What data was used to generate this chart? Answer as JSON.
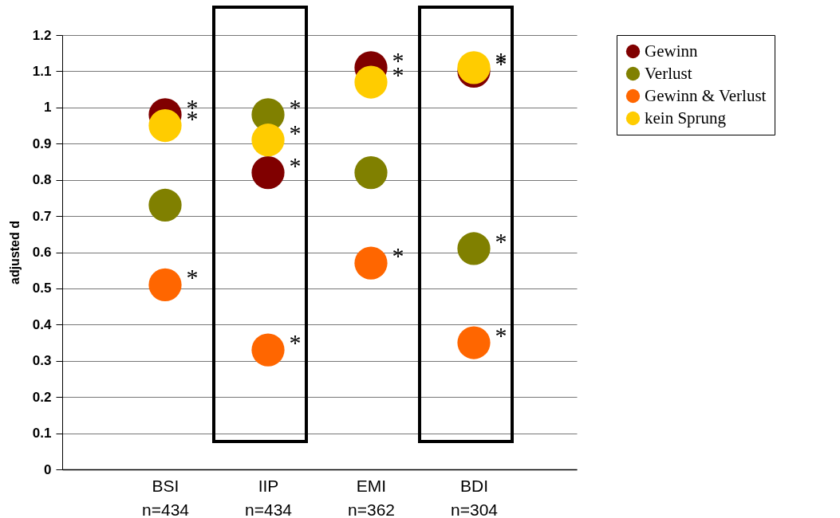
{
  "chart_data": {
    "type": "scatter",
    "ylabel": "adjusted d",
    "categories": [
      "BSI n=434",
      "IIP n=434",
      "EMI n=362",
      "BDI n=304"
    ],
    "series": [
      {
        "name": "Gewinn",
        "color": "#800000",
        "values": [
          0.98,
          0.82,
          1.11,
          1.1
        ],
        "value_labels": [
          "*",
          "*",
          "*",
          "*"
        ]
      },
      {
        "name": "Verlust",
        "color": "#808000",
        "values": [
          0.73,
          0.98,
          0.82,
          0.61
        ],
        "value_labels": [
          null,
          "*",
          null,
          "*"
        ]
      },
      {
        "name": "Gewinn & Verlust",
        "color": "#ff6600",
        "values": [
          0.51,
          0.33,
          0.57,
          0.35
        ],
        "value_labels": [
          "*",
          "*",
          "*",
          "*"
        ]
      },
      {
        "name": "kein Sprung",
        "color": "#ffcc00",
        "values": [
          0.95,
          0.91,
          1.07,
          1.11
        ],
        "value_labels": [
          "*",
          "*",
          "*",
          "*"
        ]
      }
    ],
    "ylim": [
      0,
      1.2
    ],
    "yticks": [
      0,
      0.1,
      0.2,
      0.3,
      0.4,
      0.5,
      0.6,
      0.7,
      0.8,
      0.9,
      1,
      1.1,
      1.2
    ],
    "grid": "y",
    "legend": "right",
    "marker": "circle"
  }
}
